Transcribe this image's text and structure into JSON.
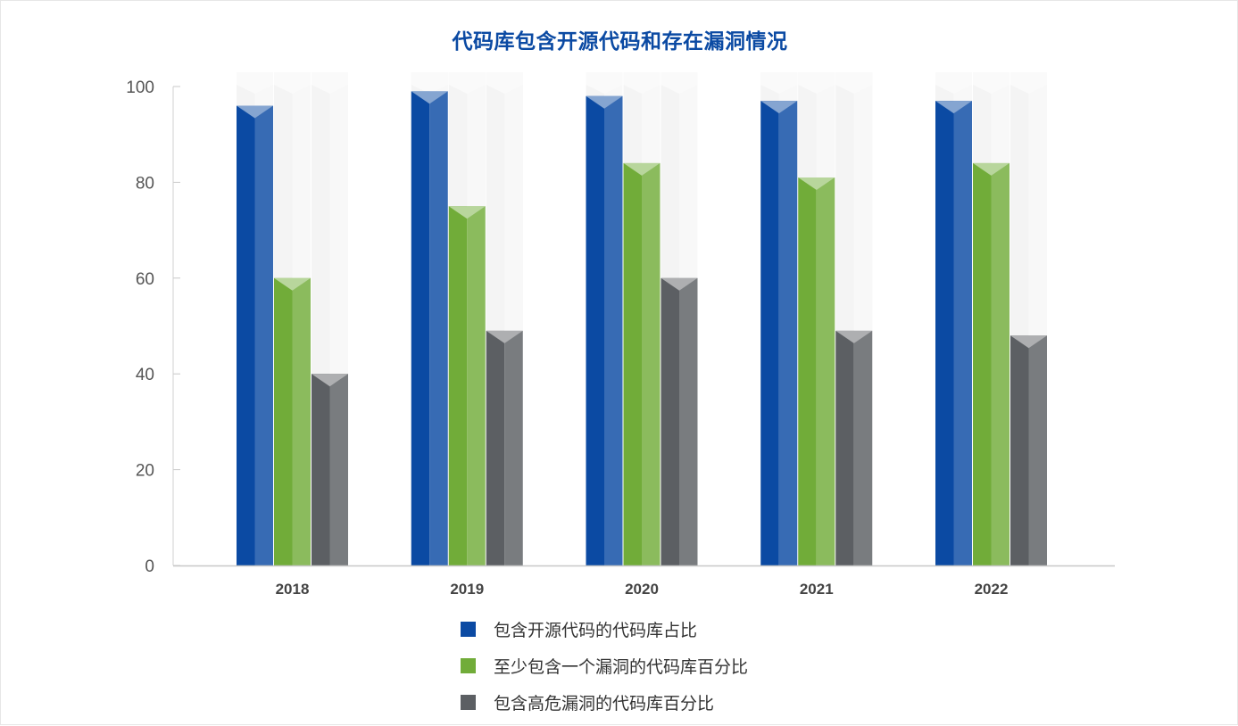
{
  "chart_data": {
    "type": "bar",
    "title": "代码库包含开源代码和存在漏洞情况",
    "categories": [
      "2018",
      "2019",
      "2020",
      "2021",
      "2022"
    ],
    "ylim": [
      0,
      100
    ],
    "yticks": [
      0,
      20,
      40,
      60,
      80,
      100
    ],
    "grid": false,
    "legend_position": "bottom",
    "series": [
      {
        "name": "包含开源代码的代码库占比",
        "values": [
          96,
          99,
          98,
          97,
          97
        ],
        "color": "#0b4aa3"
      },
      {
        "name": "至少包含一个漏洞的代码库百分比",
        "values": [
          60,
          75,
          84,
          81,
          84
        ],
        "color": "#71ac39"
      },
      {
        "name": "包含高危漏洞的代码库百分比",
        "values": [
          40,
          49,
          60,
          49,
          48
        ],
        "color": "#5c5f63"
      }
    ]
  }
}
